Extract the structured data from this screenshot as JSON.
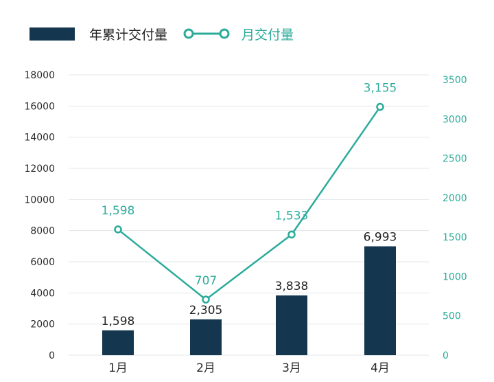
{
  "chart_data": {
    "type": "bar",
    "title": "",
    "xlabel": "",
    "ylabel": "",
    "categories": [
      "1月",
      "2月",
      "3月",
      "4月"
    ],
    "legend": {
      "placement": "top-left",
      "bar_label": "年累计交付量",
      "line_label": "月交付量"
    },
    "series": [
      {
        "name": "年累计交付量",
        "type": "bar",
        "axis": "left",
        "values": [
          1598,
          2305,
          3838,
          6993
        ],
        "labels": [
          "1,598",
          "2,305",
          "3,838",
          "6,993"
        ]
      },
      {
        "name": "月交付量",
        "type": "line",
        "axis": "right",
        "values": [
          1598,
          707,
          1533,
          3155
        ],
        "labels": [
          "1,598",
          "707",
          "1,533",
          "3,155"
        ]
      }
    ],
    "y_left": {
      "range": [
        0,
        18000
      ],
      "ticks": [
        "0",
        "2000",
        "4000",
        "6000",
        "8000",
        "10000",
        "12000",
        "14000",
        "16000",
        "18000"
      ]
    },
    "y_right": {
      "range": [
        0,
        3500
      ],
      "ticks": [
        "0",
        "500",
        "1000",
        "1500",
        "2000",
        "2500",
        "3000",
        "3500"
      ]
    },
    "grid": true,
    "colors": {
      "bar": "#14374f",
      "line": "#2bab9a",
      "grid": "#e3e6ea",
      "left_tick": "#2b2b2b",
      "right_tick": "#2bab9a",
      "category": "#2b2b2b",
      "bar_label": "#222222"
    }
  }
}
